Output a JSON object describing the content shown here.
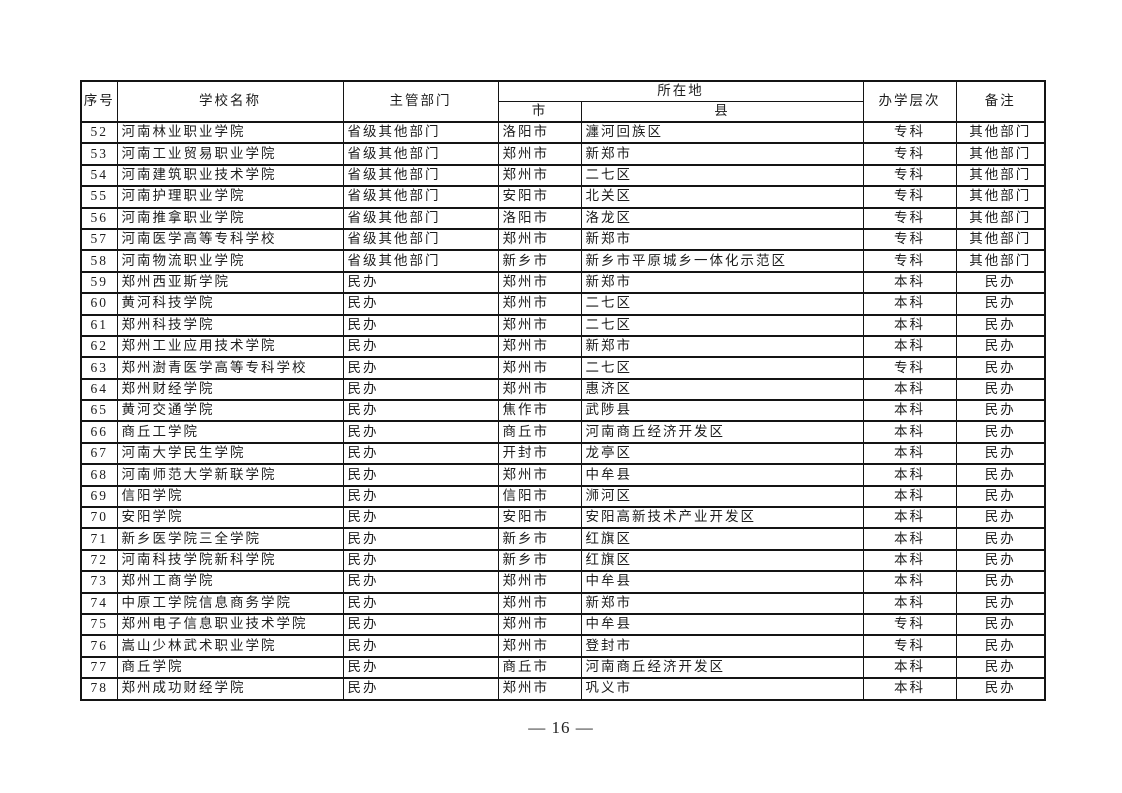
{
  "page": {
    "footer": "— 16 —"
  },
  "table": {
    "headers": {
      "no": "序号",
      "school": "学校名称",
      "department": "主管部门",
      "location": "所在地",
      "city": "市",
      "county": "县",
      "level": "办学层次",
      "remark": "备注"
    },
    "rows": [
      [
        "52",
        "河南林业职业学院",
        "省级其他部门",
        "洛阳市",
        "瀍河回族区",
        "专科",
        "其他部门"
      ],
      [
        "53",
        "河南工业贸易职业学院",
        "省级其他部门",
        "郑州市",
        "新郑市",
        "专科",
        "其他部门"
      ],
      [
        "54",
        "河南建筑职业技术学院",
        "省级其他部门",
        "郑州市",
        "二七区",
        "专科",
        "其他部门"
      ],
      [
        "55",
        "河南护理职业学院",
        "省级其他部门",
        "安阳市",
        "北关区",
        "专科",
        "其他部门"
      ],
      [
        "56",
        "河南推拿职业学院",
        "省级其他部门",
        "洛阳市",
        "洛龙区",
        "专科",
        "其他部门"
      ],
      [
        "57",
        "河南医学高等专科学校",
        "省级其他部门",
        "郑州市",
        "新郑市",
        "专科",
        "其他部门"
      ],
      [
        "58",
        "河南物流职业学院",
        "省级其他部门",
        "新乡市",
        "新乡市平原城乡一体化示范区",
        "专科",
        "其他部门"
      ],
      [
        "59",
        "郑州西亚斯学院",
        "民办",
        "郑州市",
        "新郑市",
        "本科",
        "民办"
      ],
      [
        "60",
        "黄河科技学院",
        "民办",
        "郑州市",
        "二七区",
        "本科",
        "民办"
      ],
      [
        "61",
        "郑州科技学院",
        "民办",
        "郑州市",
        "二七区",
        "本科",
        "民办"
      ],
      [
        "62",
        "郑州工业应用技术学院",
        "民办",
        "郑州市",
        "新郑市",
        "本科",
        "民办"
      ],
      [
        "63",
        "郑州澍青医学高等专科学校",
        "民办",
        "郑州市",
        "二七区",
        "专科",
        "民办"
      ],
      [
        "64",
        "郑州财经学院",
        "民办",
        "郑州市",
        "惠济区",
        "本科",
        "民办"
      ],
      [
        "65",
        "黄河交通学院",
        "民办",
        "焦作市",
        "武陟县",
        "本科",
        "民办"
      ],
      [
        "66",
        "商丘工学院",
        "民办",
        "商丘市",
        "河南商丘经济开发区",
        "本科",
        "民办"
      ],
      [
        "67",
        "河南大学民生学院",
        "民办",
        "开封市",
        "龙亭区",
        "本科",
        "民办"
      ],
      [
        "68",
        "河南师范大学新联学院",
        "民办",
        "郑州市",
        "中牟县",
        "本科",
        "民办"
      ],
      [
        "69",
        "信阳学院",
        "民办",
        "信阳市",
        "浉河区",
        "本科",
        "民办"
      ],
      [
        "70",
        "安阳学院",
        "民办",
        "安阳市",
        "安阳高新技术产业开发区",
        "本科",
        "民办"
      ],
      [
        "71",
        "新乡医学院三全学院",
        "民办",
        "新乡市",
        "红旗区",
        "本科",
        "民办"
      ],
      [
        "72",
        "河南科技学院新科学院",
        "民办",
        "新乡市",
        "红旗区",
        "本科",
        "民办"
      ],
      [
        "73",
        "郑州工商学院",
        "民办",
        "郑州市",
        "中牟县",
        "本科",
        "民办"
      ],
      [
        "74",
        "中原工学院信息商务学院",
        "民办",
        "郑州市",
        "新郑市",
        "本科",
        "民办"
      ],
      [
        "75",
        "郑州电子信息职业技术学院",
        "民办",
        "郑州市",
        "中牟县",
        "专科",
        "民办"
      ],
      [
        "76",
        "嵩山少林武术职业学院",
        "民办",
        "郑州市",
        "登封市",
        "专科",
        "民办"
      ],
      [
        "77",
        "商丘学院",
        "民办",
        "商丘市",
        "河南商丘经济开发区",
        "本科",
        "民办"
      ],
      [
        "78",
        "郑州成功财经学院",
        "民办",
        "郑州市",
        "巩义市",
        "本科",
        "民办"
      ]
    ]
  }
}
